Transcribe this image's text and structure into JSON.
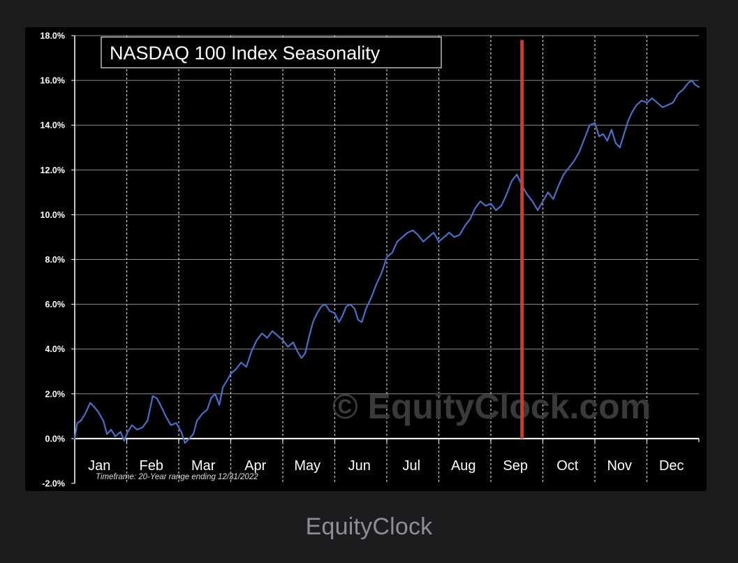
{
  "caption": "EquityClock",
  "colors": {
    "page_background": "#1c1c1e",
    "chart_background": "#000000",
    "series_line": "#4a6fc9",
    "marker_line": "#d23a2c",
    "grid": "#ffffff",
    "watermark": "#3a3a3a",
    "caption": "#8e8e93"
  },
  "chart_data": {
    "type": "line",
    "title": "NASDAQ 100 Index Seasonality",
    "timeframe_note": "Timeframe: 20-Year range ending 12/31/2022",
    "watermark": "© EquityClock.com",
    "xlabel": "",
    "ylabel": "",
    "ylim": [
      -2.0,
      18.0
    ],
    "y_ticks": [
      "-2.0%",
      "0.0%",
      "2.0%",
      "4.0%",
      "6.0%",
      "8.0%",
      "10.0%",
      "12.0%",
      "14.0%",
      "16.0%",
      "18.0%"
    ],
    "months": [
      "Jan",
      "Feb",
      "Mar",
      "Apr",
      "May",
      "Jun",
      "Jul",
      "Aug",
      "Sep",
      "Oct",
      "Nov",
      "Dec"
    ],
    "grid": true,
    "vertical_marker_month": 8.6,
    "series": [
      {
        "points": [
          [
            0.0,
            0.0
          ],
          [
            0.05,
            0.7
          ],
          [
            0.12,
            0.8
          ],
          [
            0.2,
            1.1
          ],
          [
            0.3,
            1.6
          ],
          [
            0.38,
            1.4
          ],
          [
            0.45,
            1.2
          ],
          [
            0.55,
            0.8
          ],
          [
            0.62,
            0.2
          ],
          [
            0.7,
            0.4
          ],
          [
            0.78,
            0.1
          ],
          [
            0.88,
            0.3
          ],
          [
            0.95,
            -0.1
          ],
          [
            1.02,
            0.3
          ],
          [
            1.1,
            0.6
          ],
          [
            1.2,
            0.4
          ],
          [
            1.3,
            0.5
          ],
          [
            1.4,
            0.8
          ],
          [
            1.5,
            1.9
          ],
          [
            1.58,
            1.8
          ],
          [
            1.65,
            1.5
          ],
          [
            1.75,
            1.0
          ],
          [
            1.85,
            0.6
          ],
          [
            1.95,
            0.7
          ],
          [
            2.05,
            0.3
          ],
          [
            2.12,
            -0.2
          ],
          [
            2.2,
            0.0
          ],
          [
            2.28,
            0.2
          ],
          [
            2.35,
            0.8
          ],
          [
            2.45,
            1.1
          ],
          [
            2.55,
            1.3
          ],
          [
            2.62,
            1.8
          ],
          [
            2.7,
            2.0
          ],
          [
            2.78,
            1.5
          ],
          [
            2.85,
            2.3
          ],
          [
            2.93,
            2.6
          ],
          [
            3.0,
            2.9
          ],
          [
            3.1,
            3.1
          ],
          [
            3.2,
            3.4
          ],
          [
            3.3,
            3.2
          ],
          [
            3.4,
            3.9
          ],
          [
            3.5,
            4.4
          ],
          [
            3.6,
            4.7
          ],
          [
            3.7,
            4.5
          ],
          [
            3.8,
            4.8
          ],
          [
            3.9,
            4.6
          ],
          [
            4.0,
            4.4
          ],
          [
            4.1,
            4.1
          ],
          [
            4.2,
            4.3
          ],
          [
            4.28,
            3.9
          ],
          [
            4.36,
            3.6
          ],
          [
            4.43,
            3.8
          ],
          [
            4.5,
            4.5
          ],
          [
            4.58,
            5.2
          ],
          [
            4.66,
            5.6
          ],
          [
            4.74,
            5.9
          ],
          [
            4.82,
            6.0
          ],
          [
            4.9,
            5.7
          ],
          [
            5.0,
            5.6
          ],
          [
            5.08,
            5.2
          ],
          [
            5.15,
            5.5
          ],
          [
            5.22,
            5.9
          ],
          [
            5.3,
            6.0
          ],
          [
            5.38,
            5.8
          ],
          [
            5.45,
            5.3
          ],
          [
            5.52,
            5.2
          ],
          [
            5.6,
            5.8
          ],
          [
            5.7,
            6.3
          ],
          [
            5.8,
            6.9
          ],
          [
            5.9,
            7.4
          ],
          [
            6.0,
            8.1
          ],
          [
            6.1,
            8.3
          ],
          [
            6.2,
            8.8
          ],
          [
            6.3,
            9.0
          ],
          [
            6.4,
            9.2
          ],
          [
            6.5,
            9.3
          ],
          [
            6.6,
            9.1
          ],
          [
            6.7,
            8.8
          ],
          [
            6.8,
            9.0
          ],
          [
            6.9,
            9.2
          ],
          [
            7.0,
            8.8
          ],
          [
            7.1,
            9.0
          ],
          [
            7.2,
            9.2
          ],
          [
            7.3,
            9.0
          ],
          [
            7.4,
            9.1
          ],
          [
            7.5,
            9.5
          ],
          [
            7.6,
            9.8
          ],
          [
            7.7,
            10.3
          ],
          [
            7.8,
            10.6
          ],
          [
            7.9,
            10.4
          ],
          [
            8.0,
            10.5
          ],
          [
            8.1,
            10.2
          ],
          [
            8.2,
            10.4
          ],
          [
            8.3,
            10.9
          ],
          [
            8.4,
            11.5
          ],
          [
            8.5,
            11.8
          ],
          [
            8.6,
            11.3
          ],
          [
            8.7,
            10.9
          ],
          [
            8.8,
            10.6
          ],
          [
            8.9,
            10.2
          ],
          [
            9.0,
            10.6
          ],
          [
            9.1,
            11.0
          ],
          [
            9.2,
            10.7
          ],
          [
            9.3,
            11.3
          ],
          [
            9.4,
            11.8
          ],
          [
            9.5,
            12.1
          ],
          [
            9.6,
            12.4
          ],
          [
            9.7,
            12.8
          ],
          [
            9.8,
            13.4
          ],
          [
            9.9,
            14.0
          ],
          [
            10.0,
            14.1
          ],
          [
            10.08,
            13.5
          ],
          [
            10.16,
            13.6
          ],
          [
            10.24,
            13.3
          ],
          [
            10.32,
            13.8
          ],
          [
            10.4,
            13.2
          ],
          [
            10.48,
            13.0
          ],
          [
            10.56,
            13.6
          ],
          [
            10.64,
            14.2
          ],
          [
            10.72,
            14.6
          ],
          [
            10.8,
            14.9
          ],
          [
            10.9,
            15.1
          ],
          [
            11.0,
            15.0
          ],
          [
            11.1,
            15.2
          ],
          [
            11.2,
            15.0
          ],
          [
            11.3,
            14.8
          ],
          [
            11.4,
            14.9
          ],
          [
            11.5,
            15.0
          ],
          [
            11.6,
            15.4
          ],
          [
            11.7,
            15.6
          ],
          [
            11.8,
            15.9
          ],
          [
            11.86,
            16.0
          ],
          [
            11.93,
            15.8
          ],
          [
            12.0,
            15.7
          ]
        ]
      }
    ]
  }
}
